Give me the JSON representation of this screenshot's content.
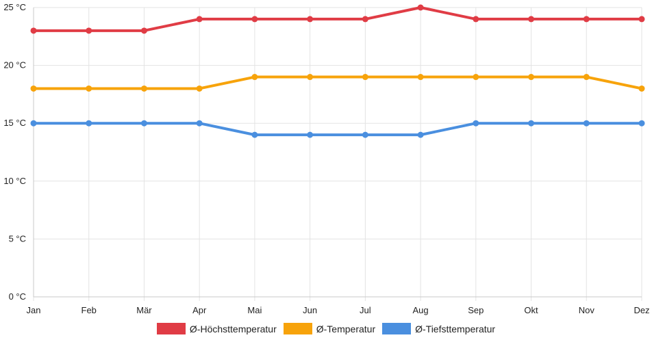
{
  "chart_data": {
    "type": "line",
    "categories": [
      "Jan",
      "Feb",
      "Mär",
      "Apr",
      "Mai",
      "Jun",
      "Jul",
      "Aug",
      "Sep",
      "Okt",
      "Nov",
      "Dez"
    ],
    "ylim": [
      0,
      25
    ],
    "y_ticks": [
      0,
      5,
      10,
      15,
      20,
      25
    ],
    "y_tick_labels": [
      "0 °C",
      "5 °C",
      "10 °C",
      "15 °C",
      "20 °C",
      "25 °C"
    ],
    "grid": true,
    "legend_position": "bottom",
    "series": [
      {
        "name": "Ø-Höchsttemperatur",
        "color": "#e03c45",
        "values": [
          23,
          23,
          23,
          24,
          24,
          24,
          24,
          25,
          24,
          24,
          24,
          24
        ]
      },
      {
        "name": "Ø-Temperatur",
        "color": "#f7a30b",
        "values": [
          18,
          18,
          18,
          18,
          19,
          19,
          19,
          19,
          19,
          19,
          19,
          18
        ]
      },
      {
        "name": "Ø-Tiefsttemperatur",
        "color": "#4a8fdf",
        "values": [
          15,
          15,
          15,
          15,
          14,
          14,
          14,
          14,
          15,
          15,
          15,
          15
        ]
      }
    ]
  }
}
